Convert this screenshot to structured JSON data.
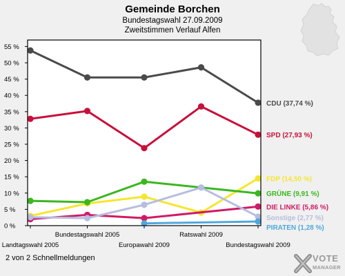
{
  "page": {
    "title": "Gemeinde Borchen",
    "subtitle_line1": "Bundestagswahl 27.09.2009",
    "subtitle_line2": "Zweitstimmen Verlauf Alfen",
    "footer": "2 von 2 Schnellmeldungen",
    "logo_line1": "VOTE",
    "logo_line2": "MANAGER",
    "logo_icon": "x-cross-icon",
    "map_icon": "germany-map-icon"
  },
  "chart_data": {
    "type": "line",
    "title": "Gemeinde Borchen",
    "subtitle": "Bundestagswahl 27.09.2009 — Zweitstimmen Verlauf Alfen",
    "categories": [
      "Landtagswahl 2005",
      "Bundestagswahl 2005",
      "Europawahl 2009",
      "Ratswahl 2009",
      "Bundestagswahl 2009"
    ],
    "yticks": [
      "0 %",
      "5 %",
      "10 %",
      "15 %",
      "20 %",
      "25 %",
      "30 %",
      "35 %",
      "40 %",
      "45 %",
      "50 %",
      "55 %"
    ],
    "ylim": [
      0,
      57
    ],
    "grid": false,
    "series": [
      {
        "name": "CDU",
        "label": "CDU (37,74 %)",
        "color": "#4a4a4a",
        "values": [
          53.8,
          45.5,
          45.5,
          48.6,
          37.74
        ]
      },
      {
        "name": "SPD",
        "label": "SPD (27,93 %)",
        "color": "#c8103a",
        "values": [
          32.8,
          35.2,
          23.8,
          36.6,
          27.93
        ]
      },
      {
        "name": "FDP",
        "label": "FDP (14,50 %)",
        "color": "#f5e62e",
        "values": [
          3.0,
          6.8,
          8.9,
          4.0,
          14.5
        ]
      },
      {
        "name": "GRÜNE",
        "label": "GRÜNE (9,91 %)",
        "color": "#3ab71f",
        "values": [
          7.6,
          7.2,
          13.5,
          null,
          9.91
        ]
      },
      {
        "name": "DIE LINKE",
        "label": "DIE LINKE (5,86 %)",
        "color": "#d01b63",
        "values": [
          2.0,
          3.3,
          2.3,
          null,
          5.86
        ]
      },
      {
        "name": "Sonstige",
        "label": "Sonstige (2,77 %)",
        "color": "#b6bde0",
        "values": [
          2.6,
          2.3,
          6.4,
          11.7,
          2.77
        ]
      },
      {
        "name": "PIRATEN",
        "label": "PIRATEN (1,28 %)",
        "color": "#4fa8dc",
        "values": [
          null,
          null,
          0.7,
          null,
          1.28
        ]
      }
    ]
  }
}
